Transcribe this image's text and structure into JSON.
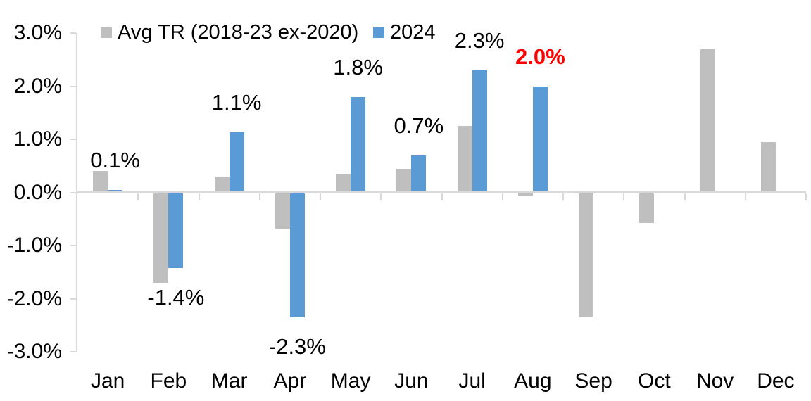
{
  "chart_data": {
    "type": "bar",
    "title": "",
    "categories": [
      "Jan",
      "Feb",
      "Mar",
      "Apr",
      "May",
      "Jun",
      "Jul",
      "Aug",
      "Sep",
      "Oct",
      "Nov",
      "Dec"
    ],
    "series": [
      {
        "key": "avg-tr",
        "name": "Avg TR (2018-23 ex-2020)",
        "color": "#BFBFBF",
        "values": [
          0.4,
          -1.7,
          0.3,
          -0.68,
          0.35,
          0.45,
          1.25,
          -0.07,
          -2.35,
          -0.58,
          2.7,
          0.95
        ]
      },
      {
        "key": "2024",
        "name": "2024",
        "color": "#5B9BD5",
        "values": [
          0.05,
          -1.43,
          1.13,
          -2.35,
          1.8,
          0.7,
          2.3,
          2.0,
          null,
          null,
          null,
          null
        ]
      }
    ],
    "value_labels": [
      {
        "text": "0.1%",
        "color": "#000000",
        "bold": false
      },
      {
        "text": "-1.4%",
        "color": "#000000",
        "bold": false
      },
      {
        "text": "1.1%",
        "color": "#000000",
        "bold": false
      },
      {
        "text": "-2.3%",
        "color": "#000000",
        "bold": false
      },
      {
        "text": "1.8%",
        "color": "#000000",
        "bold": false
      },
      {
        "text": "0.7%",
        "color": "#000000",
        "bold": false
      },
      {
        "text": "2.3%",
        "color": "#000000",
        "bold": false
      },
      {
        "text": "2.0%",
        "color": "#FF0000",
        "bold": true
      },
      null,
      null,
      null,
      null
    ],
    "y_axis": {
      "min": -3,
      "max": 3,
      "ticks": [
        {
          "label": "3.0%",
          "value": 3
        },
        {
          "label": "2.0%",
          "value": 2
        },
        {
          "label": "1.0%",
          "value": 1
        },
        {
          "label": "0.0%",
          "value": 0
        },
        {
          "label": "-1.0%",
          "value": -1
        },
        {
          "label": "-2.0%",
          "value": -2
        },
        {
          "label": "-3.0%",
          "value": -3
        }
      ]
    },
    "legend_position": "top-left",
    "grid": false,
    "axis_color": "#D9D9D9",
    "label_value_anchor_series": "2024"
  }
}
